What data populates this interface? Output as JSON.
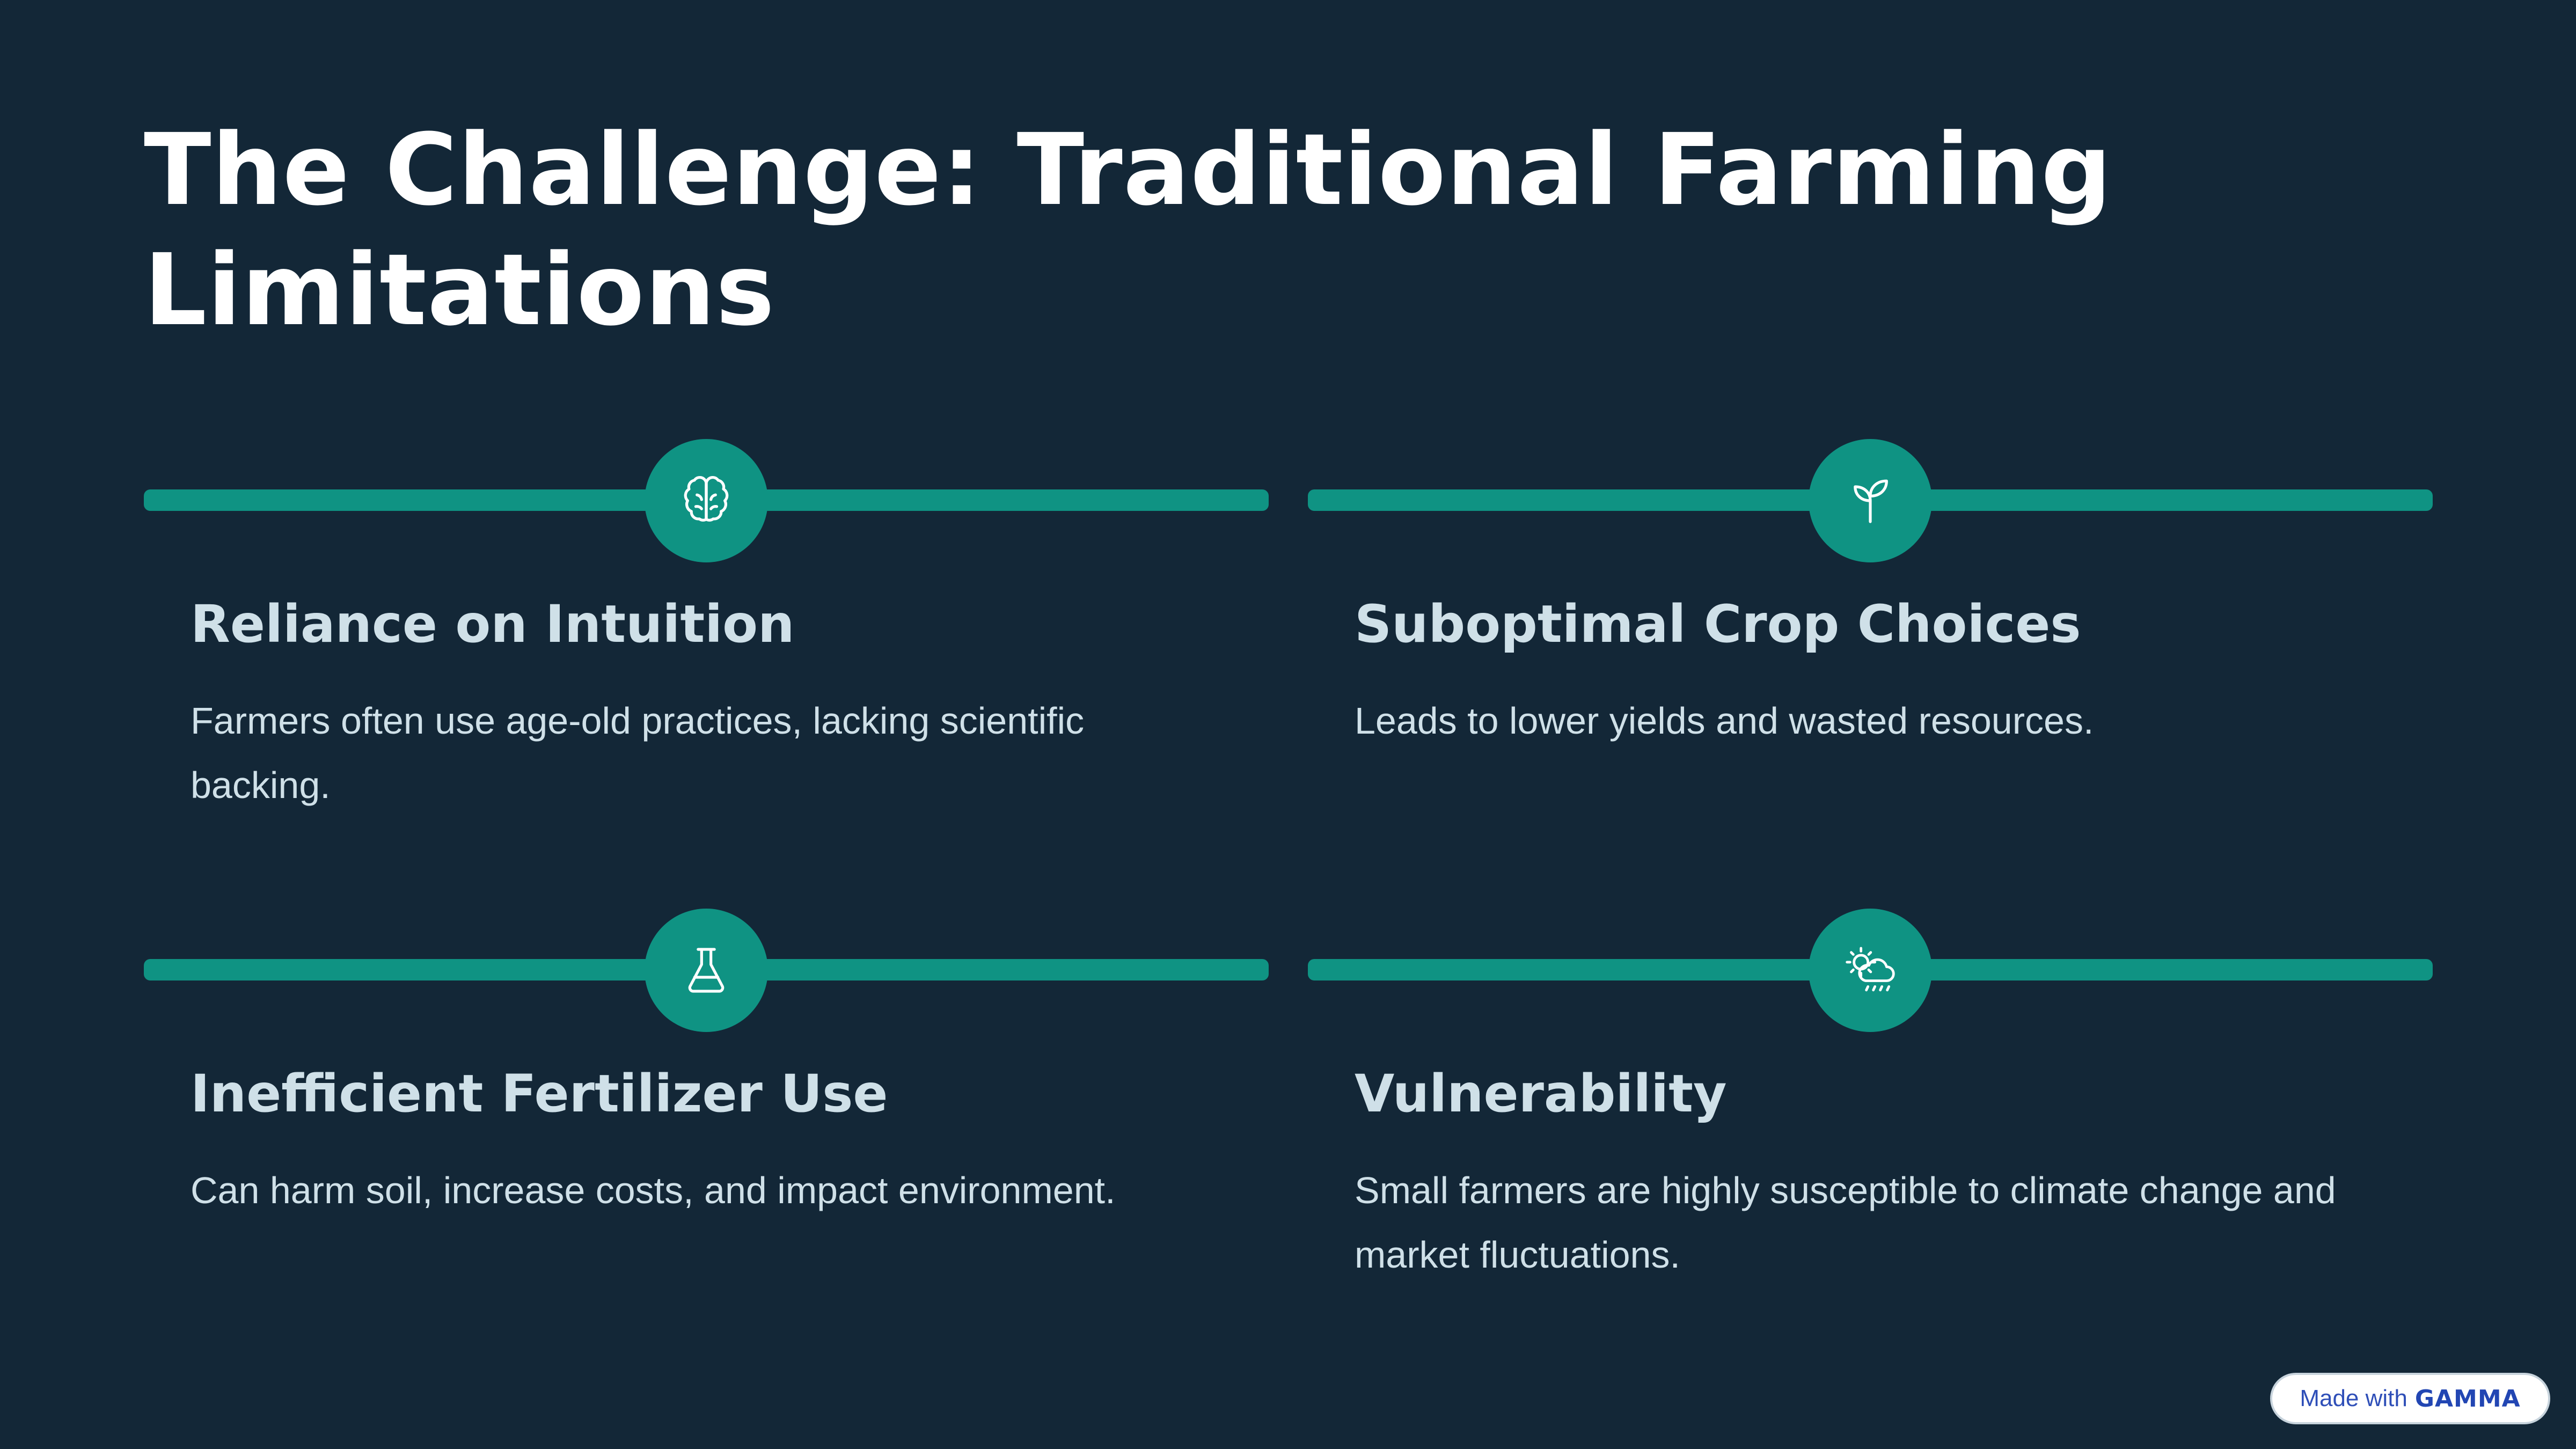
{
  "slide": {
    "title": "The Challenge: Traditional Farming Limitations",
    "cards": [
      {
        "title": "Reliance on Intuition",
        "description": "Farmers often use age-old practices, lacking scientific backing.",
        "icon": "brain-icon"
      },
      {
        "title": "Suboptimal Crop Choices",
        "description": "Leads to lower yields and wasted resources.",
        "icon": "sprout-icon"
      },
      {
        "title": "Inefficient Fertilizer Use",
        "description": "Can harm soil, increase costs, and impact environment.",
        "icon": "flask-icon"
      },
      {
        "title": "Vulnerability",
        "description": "Small farmers are highly susceptible to climate change and market fluctuations.",
        "icon": "weather-storm-icon"
      }
    ]
  },
  "badge": {
    "made_with": "Made with",
    "brand": "GAMMA"
  },
  "colors": {
    "background": "#132737",
    "accent": "#0f9383",
    "text": "#cfe0e8",
    "title": "#ffffff"
  }
}
